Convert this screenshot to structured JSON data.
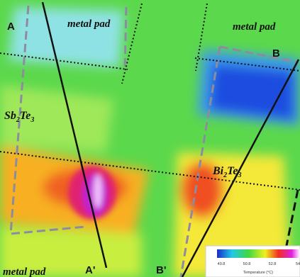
{
  "labels": {
    "a": "A",
    "a_prime": "A'",
    "b": "B",
    "b_prime": "B'",
    "metal_pad_top_left": "metal pad",
    "metal_pad_top_right": "metal pad",
    "metal_pad_bottom": "metal pad",
    "sb2te3": [
      "Sb",
      "2",
      "Te",
      "3"
    ],
    "bi2te3": [
      "Bi",
      "2",
      "Te",
      "3"
    ]
  },
  "colorbar": {
    "ticks": [
      "49.8",
      "50.8",
      "52.8",
      "54"
    ],
    "title": "Temperature (°C)"
  }
}
